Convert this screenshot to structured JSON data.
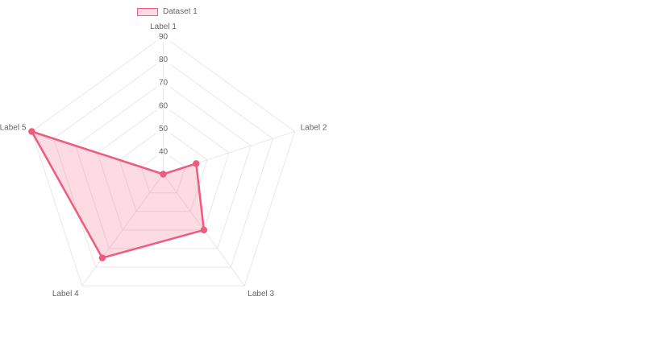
{
  "chart": {
    "legend": {
      "label": "Dataset 1",
      "position": "top"
    },
    "colors": {
      "border": "#f05a7e",
      "point": "#f05a7e",
      "fill": "rgba(240, 90, 126, 0.22)",
      "grid": "#e8e8e8",
      "text": "#666666",
      "tick_backdrop": "rgba(255, 255, 255, 0.8)"
    }
  },
  "chart_data": {
    "type": "radar",
    "title": "",
    "categories": [
      "Label 1",
      "Label 2",
      "Label 3",
      "Label 4",
      "Label 5"
    ],
    "series": [
      {
        "name": "Dataset 1",
        "values": [
          30,
          45,
          60,
          75,
          90
        ]
      }
    ],
    "scale": {
      "min": 30,
      "max": 90,
      "step": 10,
      "ticks": [
        40,
        50,
        60,
        70,
        80,
        90
      ]
    },
    "grid": true,
    "legend_position": "top"
  }
}
